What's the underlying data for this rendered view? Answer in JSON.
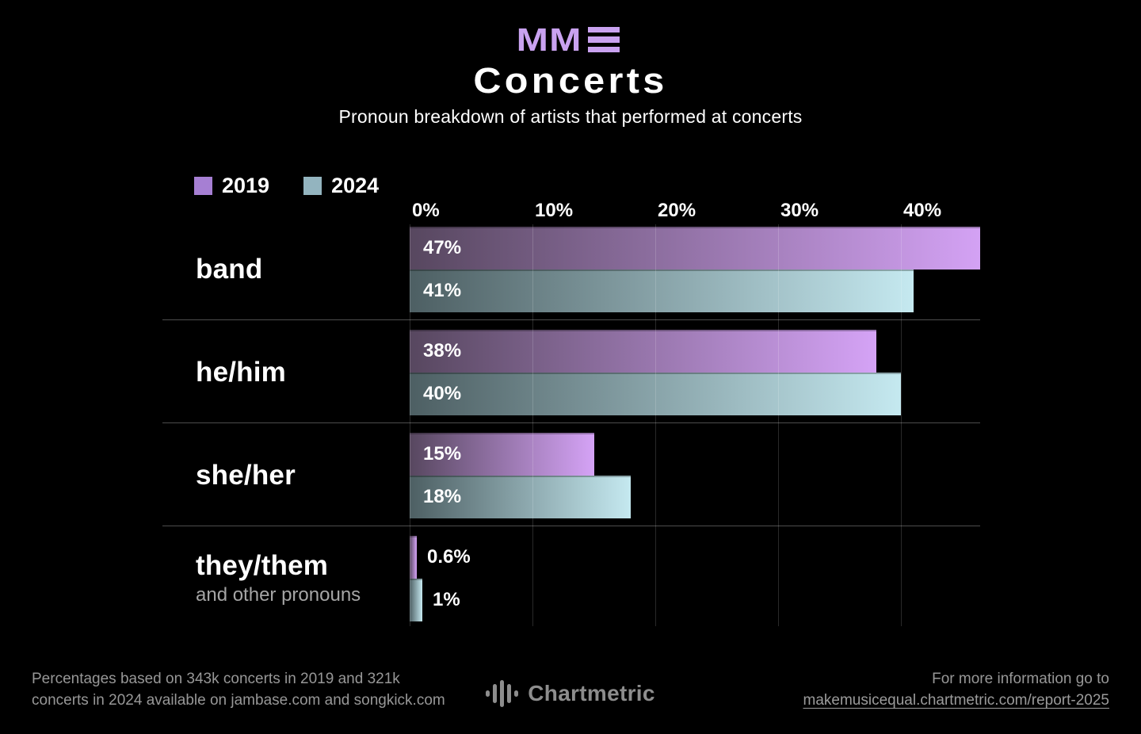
{
  "header": {
    "logo_text": "MM",
    "logo_color": "#c9a2f0",
    "title": "Concerts",
    "subtitle": "Pronoun breakdown of artists that performed at concerts"
  },
  "legend": [
    {
      "label": "2019",
      "color": "#a67fd3"
    },
    {
      "label": "2024",
      "color": "#93b4bf"
    }
  ],
  "chart_data": {
    "type": "bar",
    "orientation": "horizontal",
    "title": "Concerts",
    "subtitle": "Pronoun breakdown of artists that performed at concerts",
    "categories": [
      "band",
      "he/him",
      "she/her",
      "they/them"
    ],
    "category_sublabels": [
      "",
      "",
      "",
      "and other pronouns"
    ],
    "series": [
      {
        "name": "2019",
        "values": [
          47,
          38,
          15,
          0.6
        ],
        "value_labels": [
          "47%",
          "38%",
          "15%",
          "0.6%"
        ],
        "gradient_start": "#57475f",
        "gradient_end": "#d5a3f6",
        "legend_swatch": "#a67fd3"
      },
      {
        "name": "2024",
        "values": [
          41,
          40,
          18,
          1
        ],
        "value_labels": [
          "41%",
          "40%",
          "18%",
          "1%"
        ],
        "gradient_start": "#4d5f63",
        "gradient_end": "#c5e9f0",
        "legend_swatch": "#93b4bf"
      }
    ],
    "x_ticks": [
      "0%",
      "10%",
      "20%",
      "30%",
      "40%"
    ],
    "x_tick_values": [
      0,
      10,
      20,
      30,
      40
    ],
    "xlim": [
      0,
      46.5
    ],
    "grid": true,
    "legend_position": "top-left",
    "background": "#000000"
  },
  "footer": {
    "left_line1": "Percentages based on 343k concerts in 2019 and 321k",
    "left_line2": "concerts in 2024 available on jambase.com and songkick.com",
    "brand": "Chartmetric",
    "right_line1": "For more information go to",
    "right_link": "makemusicequal.chartmetric.com/report-2025"
  }
}
